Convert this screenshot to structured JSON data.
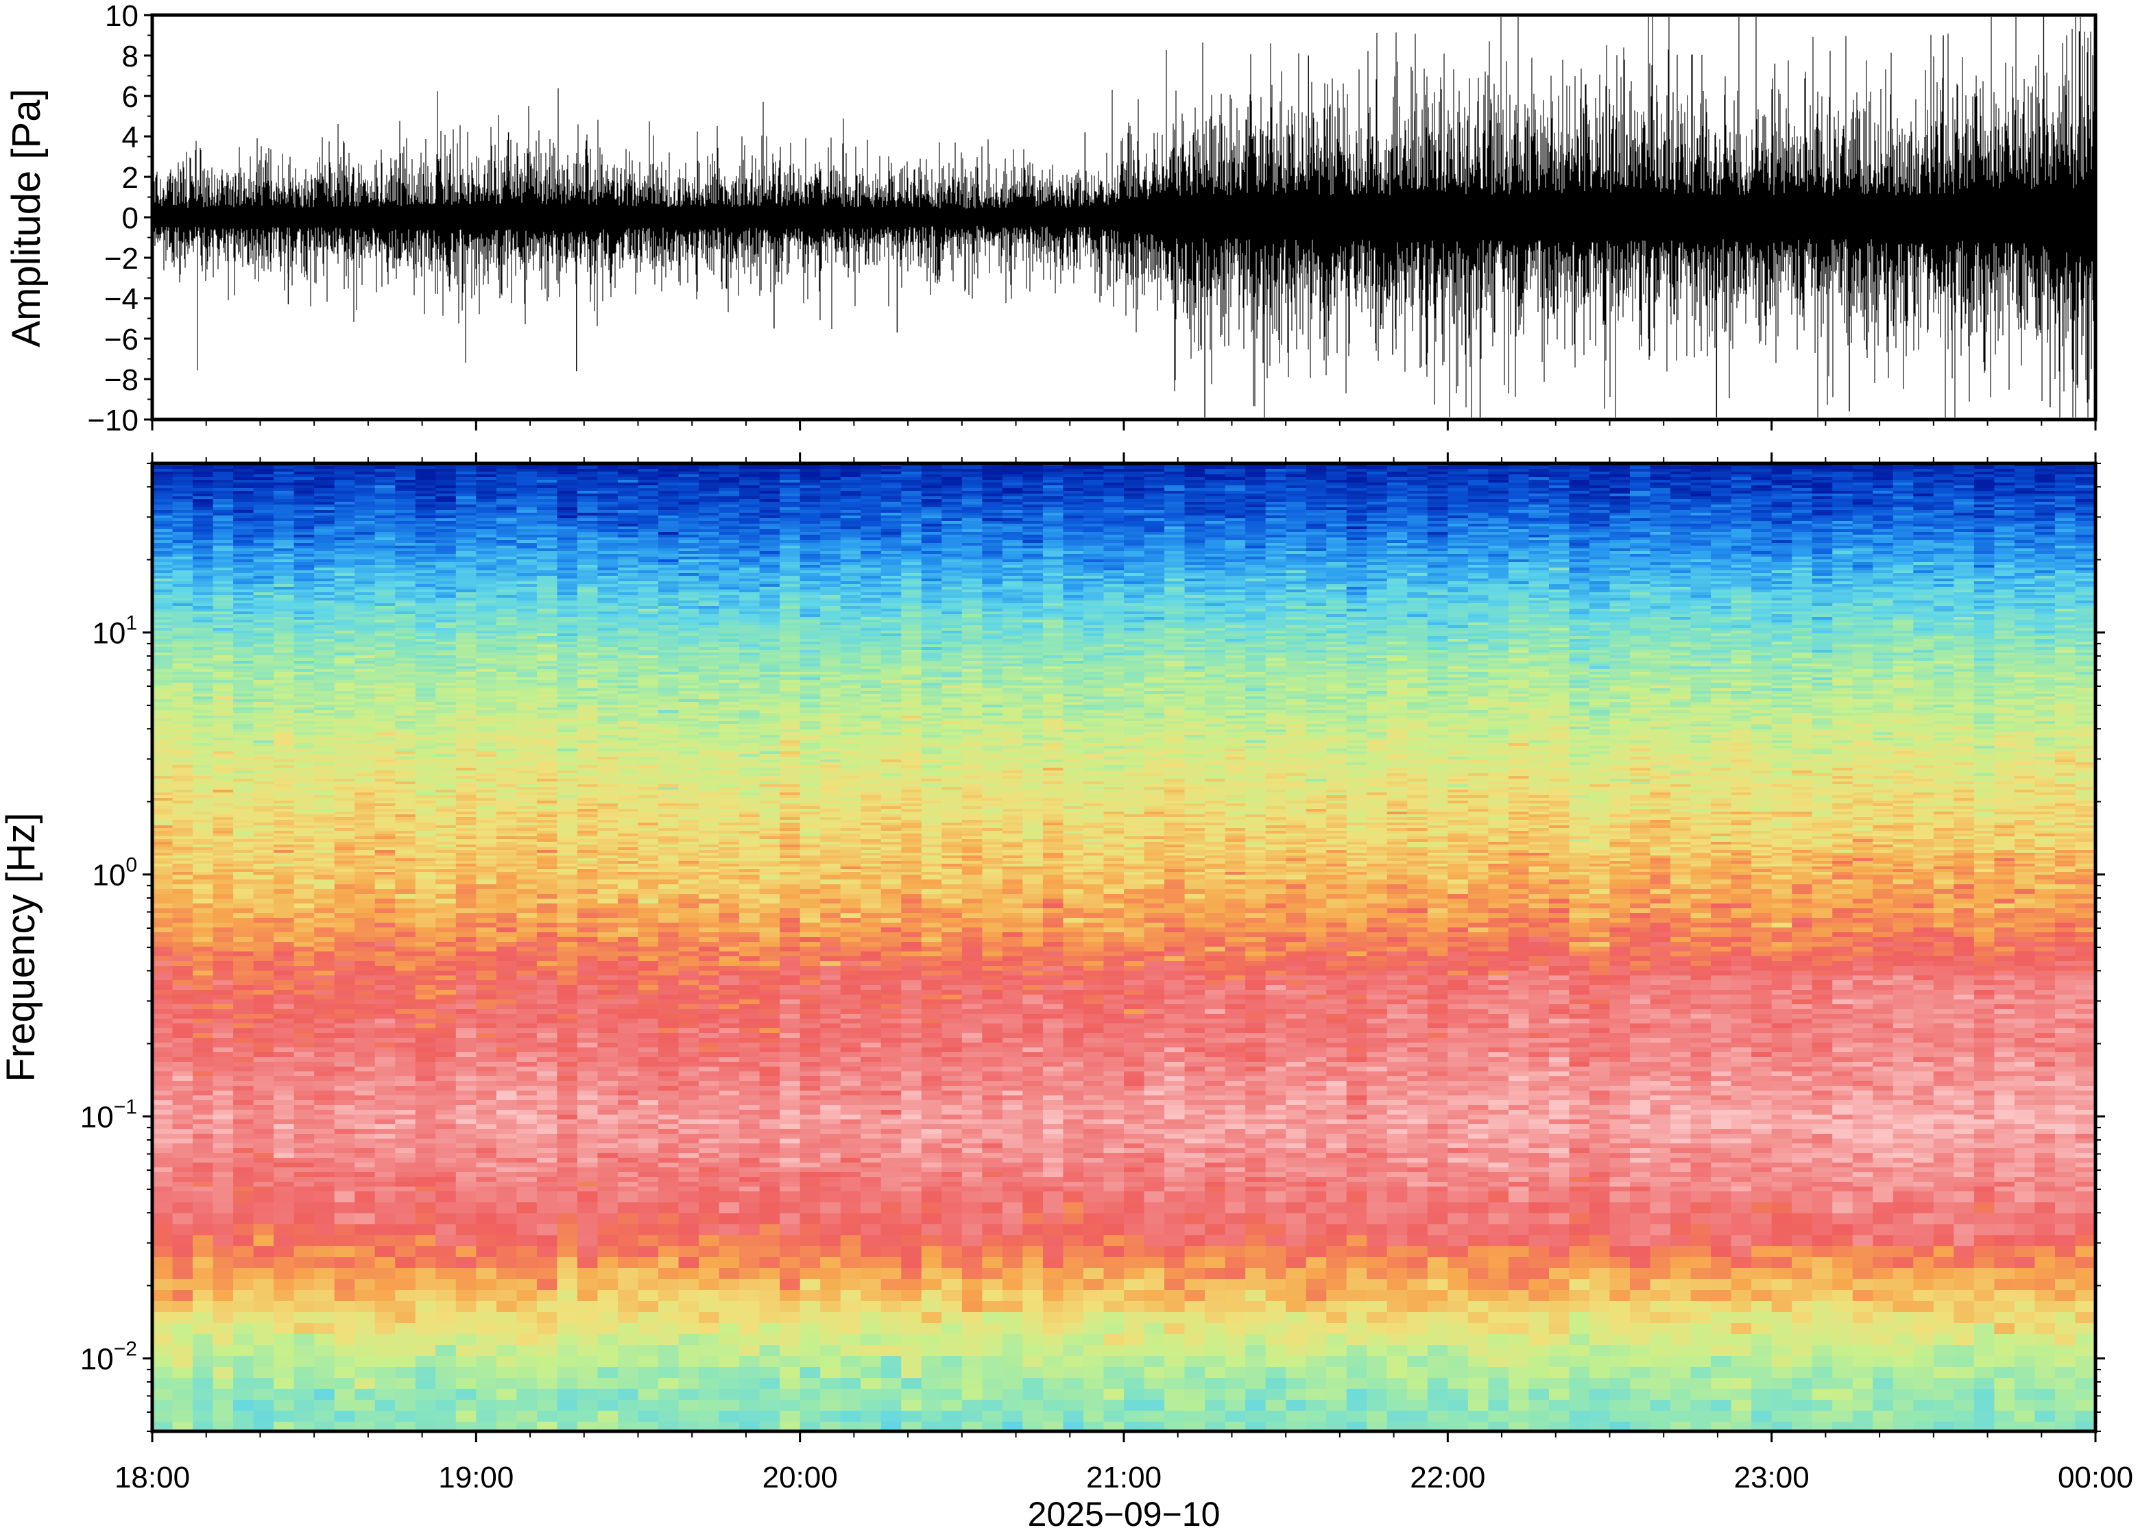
{
  "chart_data": [
    {
      "type": "line",
      "panel": "waveform",
      "ylabel": "Amplitude [Pa]",
      "ylim": [
        -10,
        10
      ],
      "yticks": [
        10,
        8,
        6,
        4,
        2,
        0,
        -2,
        -4,
        -6,
        -8,
        -10
      ],
      "ytick_labels": [
        "10",
        "8",
        "6",
        "4",
        "2",
        "0",
        "−2",
        "−4",
        "−6",
        "−8",
        "−10"
      ],
      "xlim_hours": [
        18,
        24
      ],
      "envelope": {
        "hours": [
          18.0,
          18.5,
          19.0,
          19.3,
          19.6,
          20.0,
          20.5,
          20.9,
          21.0,
          21.2,
          21.5,
          22.0,
          22.5,
          23.0,
          23.5,
          24.0
        ],
        "amplitude": [
          1.3,
          1.4,
          1.7,
          1.8,
          1.4,
          1.5,
          1.2,
          1.3,
          2.0,
          2.8,
          3.0,
          3.2,
          3.3,
          3.0,
          3.0,
          4.2
        ]
      },
      "spikes": [
        {
          "t": 18.42,
          "v": -4.3
        },
        {
          "t": 19.1,
          "v": 4.2
        },
        {
          "t": 19.31,
          "v": -7.6
        },
        {
          "t": 19.34,
          "v": 3.8
        },
        {
          "t": 19.92,
          "v": -5.5
        },
        {
          "t": 20.3,
          "v": -5.7
        },
        {
          "t": 20.88,
          "v": 4.2
        },
        {
          "t": 21.25,
          "v": -9.9
        },
        {
          "t": 21.43,
          "v": -7.2
        },
        {
          "t": 21.57,
          "v": 8.0
        },
        {
          "t": 21.83,
          "v": -6.8
        },
        {
          "t": 22.1,
          "v": -9.9
        },
        {
          "t": 22.5,
          "v": 5.6
        },
        {
          "t": 22.83,
          "v": -9.9
        },
        {
          "t": 23.01,
          "v": 7.6
        },
        {
          "t": 23.24,
          "v": -9.6
        },
        {
          "t": 23.53,
          "v": 9.0
        },
        {
          "t": 23.84,
          "v": 10.0
        },
        {
          "t": 23.86,
          "v": -9.4
        },
        {
          "t": 23.95,
          "v": 9.2
        },
        {
          "t": 23.98,
          "v": -9.0
        }
      ]
    },
    {
      "type": "heatmap",
      "panel": "spectrogram",
      "ylabel": "Frequency [Hz]",
      "yscale": "log",
      "ylim": [
        0.005,
        50
      ],
      "yticks": [
        0.01,
        0.1,
        1,
        10
      ],
      "ytick_labels": [
        {
          "base": "10",
          "exp": "−2"
        },
        {
          "base": "10",
          "exp": "−1"
        },
        {
          "base": "10",
          "exp": "0"
        },
        {
          "base": "10",
          "exp": "1"
        }
      ],
      "colormap_scale": [
        {
          "t": 0.0,
          "color": "#001ea5"
        },
        {
          "t": 0.1,
          "color": "#0a55d8"
        },
        {
          "t": 0.2,
          "color": "#2a9cf0"
        },
        {
          "t": 0.3,
          "color": "#5fd6e8"
        },
        {
          "t": 0.4,
          "color": "#8fe6b8"
        },
        {
          "t": 0.5,
          "color": "#c8f08c"
        },
        {
          "t": 0.6,
          "color": "#f0e07a"
        },
        {
          "t": 0.7,
          "color": "#f7a84e"
        },
        {
          "t": 0.8,
          "color": "#f06060"
        },
        {
          "t": 0.9,
          "color": "#f28a8a"
        },
        {
          "t": 1.0,
          "color": "#fbc3c3"
        }
      ],
      "spectrum_profile": {
        "freq_hz": [
          50,
          30,
          15,
          8,
          3,
          1.2,
          0.6,
          0.4,
          0.2,
          0.1,
          0.06,
          0.035,
          0.025,
          0.018,
          0.012,
          0.008,
          0.005
        ],
        "level": [
          0.02,
          0.12,
          0.28,
          0.42,
          0.55,
          0.64,
          0.72,
          0.8,
          0.84,
          0.92,
          0.86,
          0.8,
          0.72,
          0.64,
          0.52,
          0.42,
          0.38
        ]
      }
    }
  ],
  "xaxis": {
    "tick_hours": [
      18,
      19,
      20,
      21,
      22,
      23,
      24
    ],
    "tick_labels": [
      "18:00",
      "19:00",
      "20:00",
      "21:00",
      "22:00",
      "23:00",
      "00:00"
    ],
    "minor_tick_minutes": 10,
    "date_label": "2025−09−10"
  }
}
